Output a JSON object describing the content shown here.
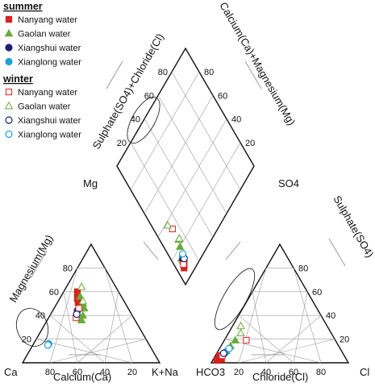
{
  "chart_data": {
    "type": "scatter",
    "chart_kind": "Piper trilinear diagram",
    "legend": {
      "placement": "top-left",
      "groups": [
        {
          "label": "summer",
          "items": [
            {
              "label": "Nanyang water",
              "marker": "square",
              "filled": true,
              "color": "#d8231f"
            },
            {
              "label": "Gaolan water",
              "marker": "triangle",
              "filled": true,
              "color": "#6aaa3c"
            },
            {
              "label": "Xiangshui water",
              "marker": "circle",
              "filled": true,
              "color": "#1b2276"
            },
            {
              "label": "Xianglong water",
              "marker": "circle",
              "filled": true,
              "color": "#1f9ed8"
            }
          ]
        },
        {
          "label": "winter",
          "items": [
            {
              "label": "Nanyang water",
              "marker": "square",
              "filled": false,
              "color": "#d8231f"
            },
            {
              "label": "Gaolan water",
              "marker": "triangle",
              "filled": false,
              "color": "#6aaa3c"
            },
            {
              "label": "Xiangshui water",
              "marker": "circle",
              "filled": false,
              "color": "#1b2276"
            },
            {
              "label": "Xianglong water",
              "marker": "circle",
              "filled": false,
              "color": "#1f9ed8"
            }
          ]
        }
      ]
    },
    "cation_triangle": {
      "corners": {
        "left": "Ca",
        "right": "K+Na",
        "top": "Mg"
      },
      "axis_titles": {
        "bottom": "Calcium(Ca)",
        "left": "Magnesium(Mg)"
      },
      "ca_ticks": [
        "80",
        "60",
        "40",
        "20"
      ],
      "mg_ticks": [
        "80",
        "60",
        "40",
        "20"
      ],
      "range": [
        0,
        100
      ],
      "points": [
        {
          "series": "Nanyang water",
          "season": "summer",
          "ca": 30,
          "mg": 60
        },
        {
          "series": "Nanyang water",
          "season": "summer",
          "ca": 31,
          "mg": 58
        },
        {
          "series": "Nanyang water",
          "season": "summer",
          "ca": 32,
          "mg": 56
        },
        {
          "series": "Nanyang water",
          "season": "summer",
          "ca": 33,
          "mg": 54
        },
        {
          "series": "Nanyang water",
          "season": "summer",
          "ca": 34,
          "mg": 51
        },
        {
          "series": "Nanyang water",
          "season": "summer",
          "ca": 35,
          "mg": 48
        },
        {
          "series": "Gaolan water",
          "season": "summer",
          "ca": 30,
          "mg": 56
        },
        {
          "series": "Gaolan water",
          "season": "summer",
          "ca": 31,
          "mg": 50
        },
        {
          "series": "Gaolan water",
          "season": "summer",
          "ca": 32,
          "mg": 46
        },
        {
          "series": "Gaolan water",
          "season": "summer",
          "ca": 36,
          "mg": 40
        },
        {
          "series": "Gaolan water",
          "season": "summer",
          "ca": 39,
          "mg": 36
        },
        {
          "series": "Xiangshui water",
          "season": "summer",
          "ca": 38,
          "mg": 44
        },
        {
          "series": "Xianglong water",
          "season": "summer",
          "ca": 73,
          "mg": 16
        },
        {
          "series": "Nanyang water",
          "season": "winter",
          "ca": 42,
          "mg": 38
        },
        {
          "series": "Nanyang water",
          "season": "winter",
          "ca": 36,
          "mg": 46
        },
        {
          "series": "Gaolan water",
          "season": "winter",
          "ca": 25,
          "mg": 64
        },
        {
          "series": "Gaolan water",
          "season": "winter",
          "ca": 30,
          "mg": 52
        },
        {
          "series": "Xiangshui water",
          "season": "winter",
          "ca": 40,
          "mg": 41
        },
        {
          "series": "Xianglong water",
          "season": "winter",
          "ca": 74,
          "mg": 15
        }
      ]
    },
    "anion_triangle": {
      "corners": {
        "left": "HCO3",
        "right": "Cl",
        "top": "SO4"
      },
      "axis_titles": {
        "bottom": "Chloride(Cl)",
        "right": "Sulphate(SO4)"
      },
      "cl_ticks": [
        "20",
        "40",
        "60",
        "80"
      ],
      "so4_ticks": [
        "20",
        "40",
        "60",
        "80"
      ],
      "range": [
        0,
        100
      ],
      "points": [
        {
          "series": "Nanyang water",
          "season": "summer",
          "cl": 3,
          "so4": 2
        },
        {
          "series": "Nanyang water",
          "season": "summer",
          "cl": 4,
          "so4": 3
        },
        {
          "series": "Nanyang water",
          "season": "summer",
          "cl": 5,
          "so4": 4
        },
        {
          "series": "Nanyang water",
          "season": "summer",
          "cl": 4,
          "so4": 5
        },
        {
          "series": "Nanyang water",
          "season": "summer",
          "cl": 6,
          "so4": 3
        },
        {
          "series": "Nanyang water",
          "season": "summer",
          "cl": 3,
          "so4": 6
        },
        {
          "series": "Gaolan water",
          "season": "summer",
          "cl": 6,
          "so4": 10
        },
        {
          "series": "Gaolan water",
          "season": "summer",
          "cl": 7,
          "so4": 14
        },
        {
          "series": "Gaolan water",
          "season": "summer",
          "cl": 5,
          "so4": 8
        },
        {
          "series": "Gaolan water",
          "season": "summer",
          "cl": 8,
          "so4": 19
        },
        {
          "series": "Xiangshui water",
          "season": "summer",
          "cl": 5,
          "so4": 7
        },
        {
          "series": "Xianglong water",
          "season": "summer",
          "cl": 6,
          "so4": 9
        },
        {
          "series": "Nanyang water",
          "season": "winter",
          "cl": 16,
          "so4": 19
        },
        {
          "series": "Nanyang water",
          "season": "winter",
          "cl": 5,
          "so4": 6
        },
        {
          "series": "Gaolan water",
          "season": "winter",
          "cl": 6,
          "so4": 31
        },
        {
          "series": "Gaolan water",
          "season": "winter",
          "cl": 9,
          "so4": 25
        },
        {
          "series": "Xiangshui water",
          "season": "winter",
          "cl": 5,
          "so4": 8
        },
        {
          "series": "Xianglong water",
          "season": "winter",
          "cl": 7,
          "so4": 12
        }
      ]
    },
    "diamond": {
      "axis_titles": {
        "upper_left": "Sulphate(SO4)+Chloride(Cl)",
        "upper_right": "Calcium(Ca)+Magnesium(Mg)"
      },
      "so4cl_ticks": [
        "20",
        "40",
        "60",
        "80"
      ],
      "camg_ticks": [
        "20",
        "40",
        "60",
        "80"
      ],
      "range": [
        0,
        100
      ],
      "points": [
        {
          "series": "Nanyang water",
          "season": "summer",
          "so4cl": 8,
          "camg": 94
        },
        {
          "series": "Nanyang water",
          "season": "summer",
          "so4cl": 9,
          "camg": 93
        },
        {
          "series": "Nanyang water",
          "season": "summer",
          "so4cl": 10,
          "camg": 92
        },
        {
          "series": "Nanyang water",
          "season": "summer",
          "so4cl": 11,
          "camg": 91
        },
        {
          "series": "Nanyang water",
          "season": "summer",
          "so4cl": 12,
          "camg": 92
        },
        {
          "series": "Gaolan water",
          "season": "summer",
          "so4cl": 20,
          "camg": 88
        },
        {
          "series": "Gaolan water",
          "season": "summer",
          "so4cl": 24,
          "camg": 86
        },
        {
          "series": "Gaolan water",
          "season": "summer",
          "so4cl": 14,
          "camg": 92
        },
        {
          "series": "Xiangshui water",
          "season": "summer",
          "so4cl": 13,
          "camg": 91
        },
        {
          "series": "Xianglong water",
          "season": "summer",
          "so4cl": 14,
          "camg": 90
        },
        {
          "series": "Nanyang water",
          "season": "winter",
          "so4cl": 33,
          "camg": 86
        },
        {
          "series": "Nanyang water",
          "season": "winter",
          "so4cl": 10,
          "camg": 93
        },
        {
          "series": "Gaolan water",
          "season": "winter",
          "so4cl": 38,
          "camg": 88
        },
        {
          "series": "Gaolan water",
          "season": "winter",
          "so4cl": 24,
          "camg": 85
        },
        {
          "series": "Xiangshui water",
          "season": "winter",
          "so4cl": 12,
          "camg": 90
        },
        {
          "series": "Xianglong water",
          "season": "winter",
          "so4cl": 15,
          "camg": 89
        }
      ]
    },
    "grid": true
  }
}
